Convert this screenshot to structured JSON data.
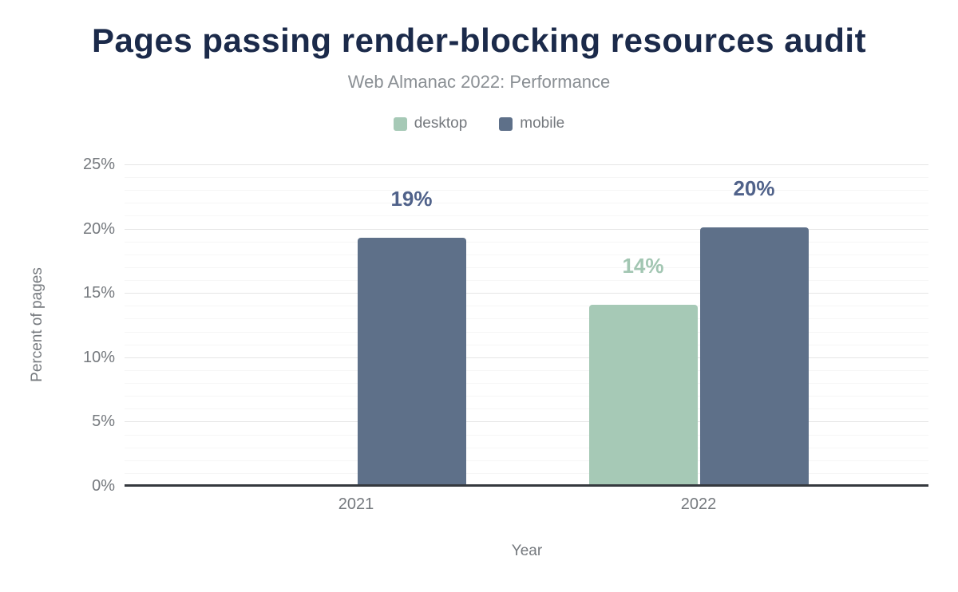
{
  "figure": {
    "title": "Pages passing render-blocking resources audit",
    "subtitle": "Web Almanac 2022: Performance"
  },
  "axes": {
    "y_title": "Percent of pages",
    "x_title": "Year"
  },
  "colors": {
    "title": "#1b2a4a",
    "subtitle": "#8a8f94",
    "axis_text": "#75797e",
    "axis_line": "#35393e",
    "grid_major": "#e6e6e6",
    "grid_minor": "#f6f6f6",
    "desktop": "#a6c9b6",
    "mobile": "#5e7089",
    "desktop_label": "#a2c6b2",
    "mobile_label": "#50628a"
  },
  "chart_data": {
    "type": "bar",
    "title": "Pages passing render-blocking resources audit",
    "subtitle": "Web Almanac 2022: Performance",
    "categories": [
      "2021",
      "2022"
    ],
    "series": [
      {
        "name": "desktop",
        "values": [
          null,
          14.1
        ],
        "data_labels": [
          "",
          "14%"
        ],
        "color": "#a6c9b6",
        "label_color": "#a2c6b2"
      },
      {
        "name": "mobile",
        "values": [
          19.3,
          20.1
        ],
        "data_labels": [
          "19%",
          "20%"
        ],
        "color": "#5e7089",
        "label_color": "#50628a"
      }
    ],
    "xlabel": "Year",
    "ylabel": "Percent of pages",
    "ylim": [
      0,
      25
    ],
    "yticks": [
      {
        "value": 0,
        "label": "0%"
      },
      {
        "value": 5,
        "label": "5%"
      },
      {
        "value": 10,
        "label": "10%"
      },
      {
        "value": 15,
        "label": "15%"
      },
      {
        "value": 20,
        "label": "20%"
      },
      {
        "value": 25,
        "label": "25%"
      }
    ],
    "grid": "horizontal: minor every 1%, major every 5%",
    "legend_position": "top-center"
  }
}
